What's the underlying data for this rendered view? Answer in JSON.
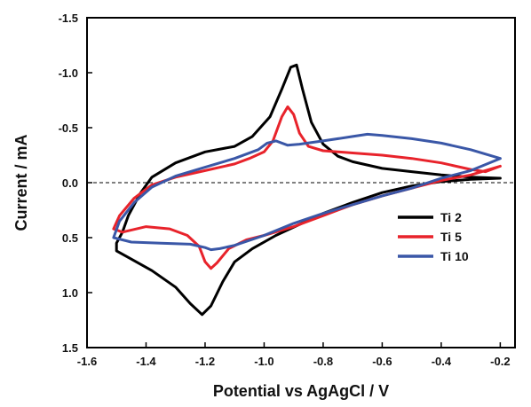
{
  "chart_data": {
    "type": "line",
    "title": "",
    "xlabel": "Potential vs AgAgCl / V",
    "ylabel": "Current / mA",
    "xlim": [
      -1.6,
      -0.15
    ],
    "ylim": [
      -1.5,
      1.5
    ],
    "y_axis_inverted": true,
    "xticks": [
      -1.6,
      -1.4,
      -1.2,
      -1.0,
      -0.8,
      -0.6,
      -0.4,
      -0.2
    ],
    "xtick_labels": [
      "-1.6",
      "-1.4",
      "-1.2",
      "-1.0",
      "-0.8",
      "-0.6",
      "-0.4",
      "-0.2"
    ],
    "yticks": [
      -1.5,
      -1.0,
      -0.5,
      0.0,
      0.5,
      1.0,
      1.5
    ],
    "ytick_labels": [
      "-1.5",
      "-1.0",
      "-0.5",
      "0.0",
      "0.5",
      "1.0",
      "1.5"
    ],
    "zero_line": {
      "y": 0.0,
      "style": "dashed"
    },
    "grid": false,
    "legend_position": "right-center",
    "series": [
      {
        "name": "Ti 2",
        "color": "#000000",
        "points": [
          [
            -0.2,
            -0.04
          ],
          [
            -0.3,
            -0.05
          ],
          [
            -0.4,
            -0.07
          ],
          [
            -0.5,
            -0.1
          ],
          [
            -0.6,
            -0.13
          ],
          [
            -0.7,
            -0.19
          ],
          [
            -0.75,
            -0.24
          ],
          [
            -0.8,
            -0.35
          ],
          [
            -0.84,
            -0.55
          ],
          [
            -0.87,
            -0.85
          ],
          [
            -0.89,
            -1.07
          ],
          [
            -0.91,
            -1.05
          ],
          [
            -0.94,
            -0.85
          ],
          [
            -0.98,
            -0.6
          ],
          [
            -1.04,
            -0.42
          ],
          [
            -1.1,
            -0.33
          ],
          [
            -1.2,
            -0.28
          ],
          [
            -1.3,
            -0.18
          ],
          [
            -1.38,
            -0.05
          ],
          [
            -1.42,
            0.1
          ],
          [
            -1.46,
            0.3
          ],
          [
            -1.48,
            0.45
          ],
          [
            -1.5,
            0.55
          ],
          [
            -1.5,
            0.62
          ],
          [
            -1.46,
            0.68
          ],
          [
            -1.38,
            0.8
          ],
          [
            -1.3,
            0.95
          ],
          [
            -1.25,
            1.1
          ],
          [
            -1.21,
            1.2
          ],
          [
            -1.18,
            1.12
          ],
          [
            -1.14,
            0.9
          ],
          [
            -1.1,
            0.72
          ],
          [
            -1.04,
            0.6
          ],
          [
            -0.96,
            0.48
          ],
          [
            -0.88,
            0.38
          ],
          [
            -0.8,
            0.28
          ],
          [
            -0.7,
            0.18
          ],
          [
            -0.6,
            0.09
          ],
          [
            -0.5,
            0.03
          ],
          [
            -0.4,
            -0.01
          ],
          [
            -0.3,
            -0.03
          ],
          [
            -0.2,
            -0.04
          ]
        ]
      },
      {
        "name": "Ti 5",
        "color": "#e8232b",
        "points": [
          [
            -0.2,
            -0.15
          ],
          [
            -0.25,
            -0.1
          ],
          [
            -0.3,
            -0.12
          ],
          [
            -0.4,
            -0.18
          ],
          [
            -0.5,
            -0.22
          ],
          [
            -0.6,
            -0.25
          ],
          [
            -0.7,
            -0.27
          ],
          [
            -0.8,
            -0.29
          ],
          [
            -0.85,
            -0.33
          ],
          [
            -0.88,
            -0.45
          ],
          [
            -0.9,
            -0.62
          ],
          [
            -0.92,
            -0.69
          ],
          [
            -0.94,
            -0.6
          ],
          [
            -0.97,
            -0.38
          ],
          [
            -1.0,
            -0.28
          ],
          [
            -1.05,
            -0.22
          ],
          [
            -1.1,
            -0.17
          ],
          [
            -1.2,
            -0.11
          ],
          [
            -1.3,
            -0.05
          ],
          [
            -1.38,
            0.02
          ],
          [
            -1.44,
            0.14
          ],
          [
            -1.49,
            0.3
          ],
          [
            -1.51,
            0.42
          ],
          [
            -1.48,
            0.45
          ],
          [
            -1.4,
            0.4
          ],
          [
            -1.32,
            0.42
          ],
          [
            -1.26,
            0.48
          ],
          [
            -1.22,
            0.58
          ],
          [
            -1.2,
            0.72
          ],
          [
            -1.18,
            0.78
          ],
          [
            -1.16,
            0.73
          ],
          [
            -1.12,
            0.6
          ],
          [
            -1.06,
            0.52
          ],
          [
            -1.0,
            0.48
          ],
          [
            -0.9,
            0.4
          ],
          [
            -0.8,
            0.3
          ],
          [
            -0.7,
            0.2
          ],
          [
            -0.6,
            0.12
          ],
          [
            -0.5,
            0.05
          ],
          [
            -0.4,
            -0.02
          ],
          [
            -0.3,
            -0.07
          ],
          [
            -0.2,
            -0.15
          ]
        ]
      },
      {
        "name": "Ti 10",
        "color": "#3a57a7",
        "points": [
          [
            -0.2,
            -0.22
          ],
          [
            -0.3,
            -0.3
          ],
          [
            -0.4,
            -0.36
          ],
          [
            -0.5,
            -0.4
          ],
          [
            -0.6,
            -0.43
          ],
          [
            -0.65,
            -0.44
          ],
          [
            -0.7,
            -0.42
          ],
          [
            -0.8,
            -0.38
          ],
          [
            -0.88,
            -0.35
          ],
          [
            -0.92,
            -0.34
          ],
          [
            -0.96,
            -0.38
          ],
          [
            -0.99,
            -0.36
          ],
          [
            -1.02,
            -0.3
          ],
          [
            -1.1,
            -0.22
          ],
          [
            -1.2,
            -0.14
          ],
          [
            -1.3,
            -0.06
          ],
          [
            -1.38,
            0.04
          ],
          [
            -1.44,
            0.18
          ],
          [
            -1.49,
            0.35
          ],
          [
            -1.51,
            0.5
          ],
          [
            -1.45,
            0.54
          ],
          [
            -1.35,
            0.55
          ],
          [
            -1.25,
            0.56
          ],
          [
            -1.2,
            0.59
          ],
          [
            -1.18,
            0.61
          ],
          [
            -1.15,
            0.6
          ],
          [
            -1.1,
            0.57
          ],
          [
            -1.0,
            0.48
          ],
          [
            -0.9,
            0.37
          ],
          [
            -0.8,
            0.28
          ],
          [
            -0.7,
            0.2
          ],
          [
            -0.6,
            0.12
          ],
          [
            -0.5,
            0.05
          ],
          [
            -0.4,
            -0.04
          ],
          [
            -0.3,
            -0.11
          ],
          [
            -0.2,
            -0.22
          ]
        ]
      }
    ]
  }
}
